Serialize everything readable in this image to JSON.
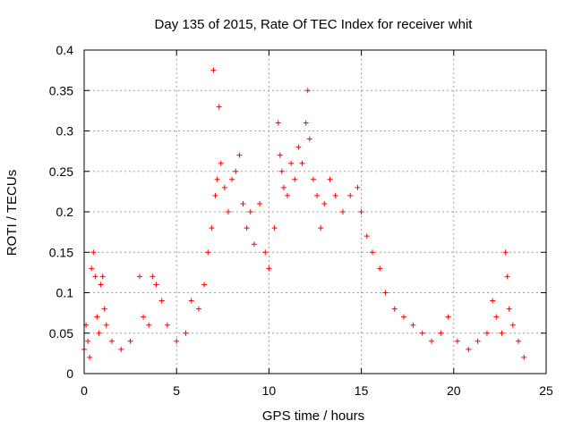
{
  "chart_data": {
    "type": "scatter",
    "title": "Day 135 of 2015, Rate Of TEC Index for receiver whit",
    "xlabel": "GPS time / hours",
    "ylabel": "ROTI / TECUs",
    "xlim": [
      0,
      25
    ],
    "ylim": [
      0,
      0.4
    ],
    "x_ticks": [
      "0",
      "5",
      "10",
      "15",
      "20",
      "25"
    ],
    "y_ticks": [
      "0",
      "0.05",
      "0.1",
      "0.15",
      "0.2",
      "0.25",
      "0.3",
      "0.35",
      "0.4"
    ],
    "grid": true,
    "marker": "+",
    "color": "#ff0000",
    "series": [
      {
        "points": [
          [
            0.0,
            0.03
          ],
          [
            0.1,
            0.06
          ],
          [
            0.2,
            0.04
          ],
          [
            0.3,
            0.02
          ],
          [
            0.4,
            0.13
          ],
          [
            0.5,
            0.15
          ],
          [
            0.6,
            0.12
          ],
          [
            0.7,
            0.07
          ],
          [
            0.8,
            0.05
          ],
          [
            0.9,
            0.11
          ],
          [
            1.0,
            0.12
          ],
          [
            1.1,
            0.08
          ],
          [
            1.2,
            0.06
          ],
          [
            1.5,
            0.04
          ],
          [
            2.0,
            0.03
          ],
          [
            2.5,
            0.04
          ],
          [
            3.0,
            0.12
          ],
          [
            3.2,
            0.07
          ],
          [
            3.5,
            0.06
          ],
          [
            3.7,
            0.12
          ],
          [
            3.9,
            0.11
          ],
          [
            4.2,
            0.09
          ],
          [
            4.5,
            0.06
          ],
          [
            5.0,
            0.04
          ],
          [
            5.5,
            0.05
          ],
          [
            5.8,
            0.09
          ],
          [
            6.2,
            0.08
          ],
          [
            6.5,
            0.11
          ],
          [
            6.7,
            0.15
          ],
          [
            6.9,
            0.18
          ],
          [
            7.0,
            0.375
          ],
          [
            7.1,
            0.22
          ],
          [
            7.2,
            0.24
          ],
          [
            7.3,
            0.33
          ],
          [
            7.4,
            0.26
          ],
          [
            7.6,
            0.23
          ],
          [
            7.8,
            0.2
          ],
          [
            8.0,
            0.24
          ],
          [
            8.2,
            0.25
          ],
          [
            8.4,
            0.27
          ],
          [
            8.6,
            0.21
          ],
          [
            8.8,
            0.18
          ],
          [
            9.0,
            0.2
          ],
          [
            9.2,
            0.16
          ],
          [
            9.5,
            0.21
          ],
          [
            9.8,
            0.15
          ],
          [
            10.0,
            0.13
          ],
          [
            10.3,
            0.18
          ],
          [
            10.5,
            0.31
          ],
          [
            10.6,
            0.27
          ],
          [
            10.7,
            0.25
          ],
          [
            10.8,
            0.23
          ],
          [
            11.0,
            0.22
          ],
          [
            11.2,
            0.26
          ],
          [
            11.4,
            0.24
          ],
          [
            11.6,
            0.28
          ],
          [
            11.8,
            0.26
          ],
          [
            12.0,
            0.31
          ],
          [
            12.1,
            0.35
          ],
          [
            12.2,
            0.29
          ],
          [
            12.4,
            0.24
          ],
          [
            12.6,
            0.22
          ],
          [
            12.8,
            0.18
          ],
          [
            13.0,
            0.21
          ],
          [
            13.3,
            0.24
          ],
          [
            13.6,
            0.22
          ],
          [
            14.0,
            0.2
          ],
          [
            14.4,
            0.22
          ],
          [
            14.8,
            0.23
          ],
          [
            15.0,
            0.2
          ],
          [
            15.3,
            0.17
          ],
          [
            15.6,
            0.15
          ],
          [
            16.0,
            0.13
          ],
          [
            16.3,
            0.1
          ],
          [
            16.8,
            0.08
          ],
          [
            17.3,
            0.07
          ],
          [
            17.8,
            0.06
          ],
          [
            18.3,
            0.05
          ],
          [
            18.8,
            0.04
          ],
          [
            19.3,
            0.05
          ],
          [
            19.7,
            0.07
          ],
          [
            20.2,
            0.04
          ],
          [
            20.8,
            0.03
          ],
          [
            21.3,
            0.04
          ],
          [
            21.8,
            0.05
          ],
          [
            22.1,
            0.09
          ],
          [
            22.3,
            0.07
          ],
          [
            22.6,
            0.05
          ],
          [
            22.8,
            0.15
          ],
          [
            22.9,
            0.12
          ],
          [
            23.0,
            0.08
          ],
          [
            23.2,
            0.06
          ],
          [
            23.5,
            0.04
          ],
          [
            23.8,
            0.02
          ]
        ]
      }
    ]
  }
}
